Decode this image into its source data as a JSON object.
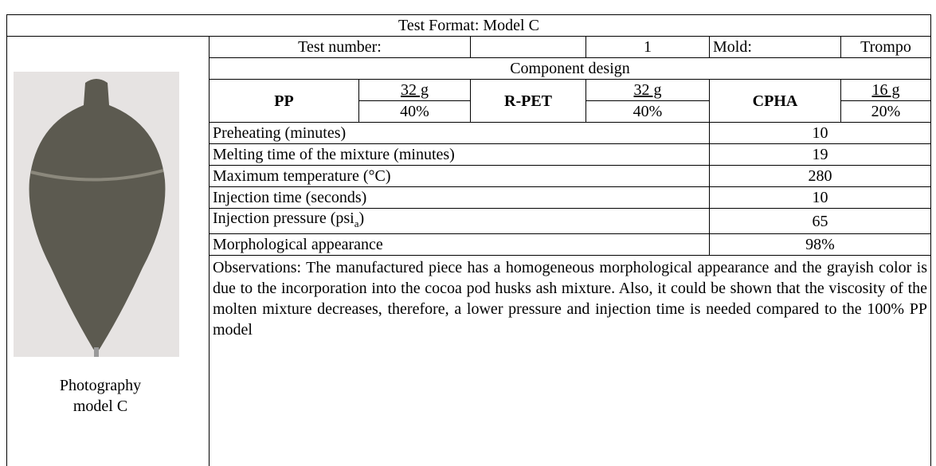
{
  "header": {
    "title": "Test Format: Model C"
  },
  "photo": {
    "caption_line1": "Photography",
    "caption_line2": "model C"
  },
  "test": {
    "label": "Test number:",
    "number": "1",
    "mold_label": "Mold:",
    "mold": "Trompo"
  },
  "component": {
    "title": "Component design",
    "items": [
      {
        "name": "PP",
        "mass": "32 g",
        "percent": "40%"
      },
      {
        "name": "R-PET",
        "mass": "32 g",
        "percent": "40%"
      },
      {
        "name": "CPHA",
        "mass": "16 g",
        "percent": "20%"
      }
    ]
  },
  "parameters": [
    {
      "label": "Preheating (minutes)",
      "value": "10"
    },
    {
      "label": "Melting time of the mixture (minutes)",
      "value": "19"
    },
    {
      "label": "Maximum temperature (°C)",
      "value": "280"
    },
    {
      "label": "Injection time (seconds)",
      "value": "10"
    },
    {
      "label": "Injection pressure (psi",
      "subscript": "a",
      "label_end": ")",
      "value": "65"
    },
    {
      "label": "Morphological appearance",
      "value": "98%"
    }
  ],
  "observations": "Observations: The manufactured piece has a homogeneous morphological appearance and the grayish color is due to the incorporation into the cocoa pod husks ash mixture. Also, it could be shown that the viscosity of the molten mixture decreases, therefore, a lower pressure and injection time is needed compared to the 100% PP model"
}
